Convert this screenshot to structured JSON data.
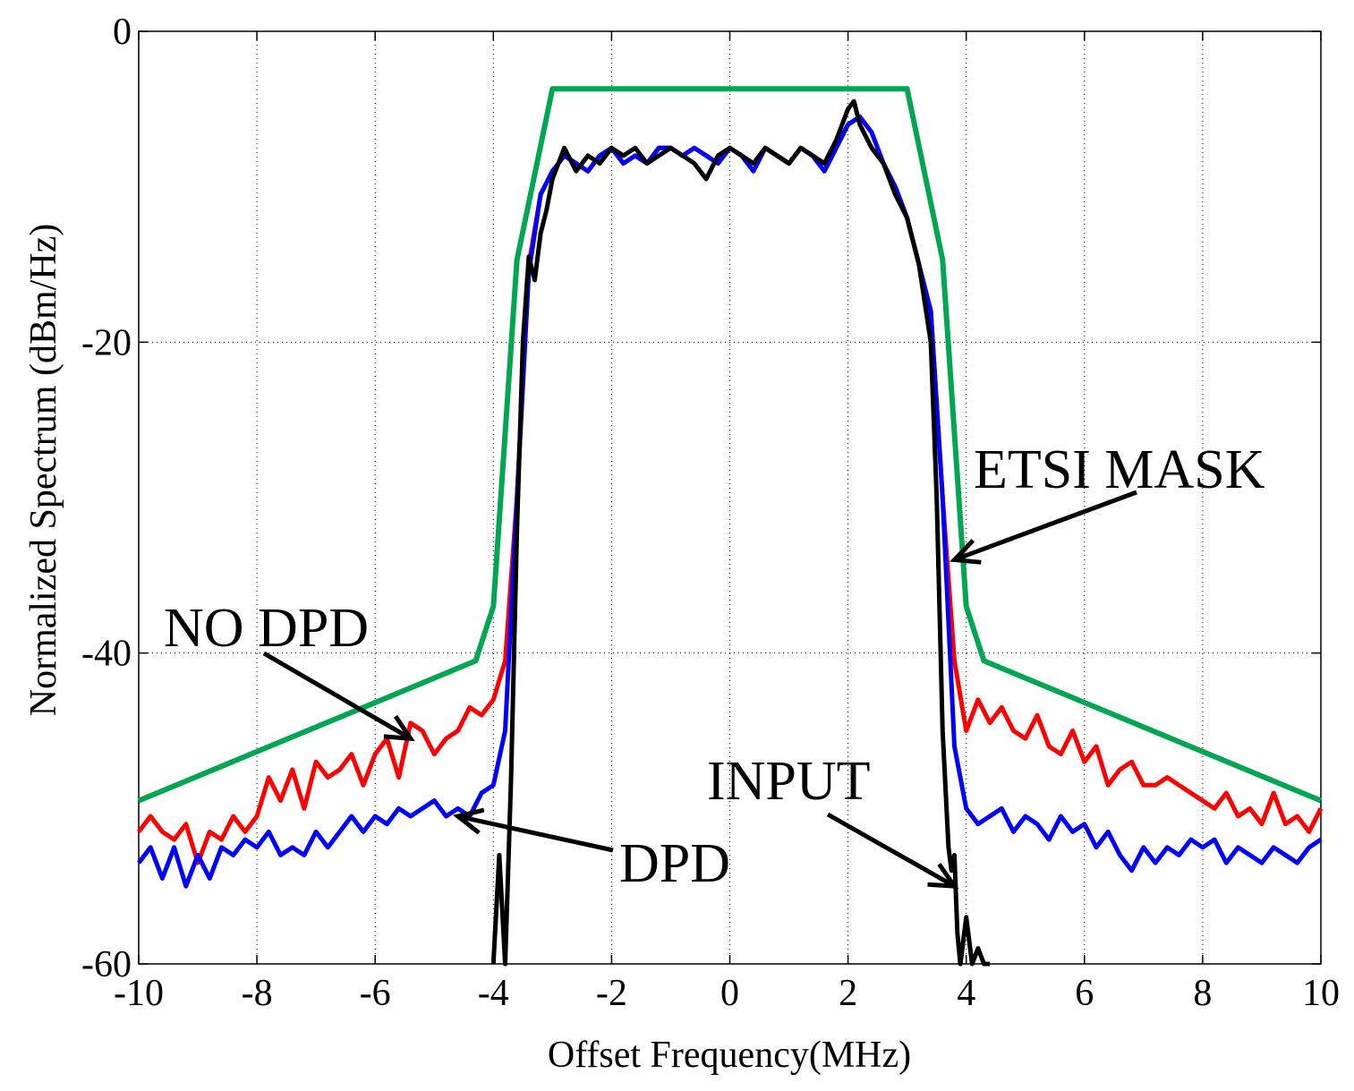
{
  "chart_data": {
    "type": "line",
    "title": "",
    "xlabel": "Offset Frequency(MHz)",
    "ylabel": "Normalized Spectrum (dBm/Hz)",
    "xlim": [
      -10,
      10
    ],
    "ylim": [
      -60,
      0
    ],
    "xticks": [
      -10,
      -8,
      -6,
      -4,
      -2,
      0,
      2,
      4,
      6,
      8,
      10
    ],
    "yticks": [
      0,
      -20,
      -40,
      -60
    ],
    "xtick_labels": [
      "-10",
      "-8",
      "-6",
      "-4",
      "-2",
      "0",
      "2",
      "4",
      "6",
      "8",
      "10"
    ],
    "ytick_labels": [
      "0",
      "-20",
      "-40",
      "-60"
    ],
    "grid": true,
    "colors": {
      "no_dpd": "#ff0000",
      "dpd": "#0000ff",
      "input": "#000000",
      "mask": "#00a651"
    },
    "series": [
      {
        "name": "ETSI MASK",
        "color": "#00a651",
        "x": [
          -10,
          -4.3,
          -4.0,
          -3.6,
          -3.0,
          3.0,
          3.6,
          4.0,
          4.3,
          10
        ],
        "y": [
          -49.5,
          -40.5,
          -37,
          -14.7,
          -3.7,
          -3.7,
          -14.7,
          -37,
          -40.5,
          -49.5
        ]
      },
      {
        "name": "NO DPD",
        "color": "#ff0000",
        "x": [
          -10,
          -9.8,
          -9.6,
          -9.4,
          -9.2,
          -9.0,
          -8.8,
          -8.6,
          -8.4,
          -8.2,
          -8.0,
          -7.8,
          -7.6,
          -7.4,
          -7.2,
          -7.0,
          -6.8,
          -6.6,
          -6.4,
          -6.2,
          -6.0,
          -5.8,
          -5.6,
          -5.4,
          -5.2,
          -5.0,
          -4.8,
          -4.6,
          -4.4,
          -4.2,
          -4.0,
          -3.8,
          -3.6,
          -3.4,
          -3.2,
          -3.0,
          -2.8,
          -2.6,
          -2.4,
          -2.2,
          -2.0,
          -1.8,
          -1.6,
          -1.4,
          -1.2,
          -1.0,
          -0.8,
          -0.6,
          -0.4,
          -0.2,
          0.0,
          0.2,
          0.4,
          0.6,
          0.8,
          1.0,
          1.2,
          1.4,
          1.6,
          1.8,
          2.0,
          2.2,
          2.4,
          2.6,
          2.8,
          3.0,
          3.2,
          3.4,
          3.6,
          3.8,
          4.0,
          4.2,
          4.4,
          4.6,
          4.8,
          5.0,
          5.2,
          5.4,
          5.6,
          5.8,
          6.0,
          6.2,
          6.4,
          6.6,
          6.8,
          7.0,
          7.2,
          7.4,
          7.6,
          7.8,
          8.0,
          8.2,
          8.4,
          8.6,
          8.8,
          9.0,
          9.2,
          9.4,
          9.6,
          9.8,
          10.0
        ],
        "y": [
          -51.5,
          -50.5,
          -51.5,
          -52,
          -51,
          -53.5,
          -51.5,
          -52,
          -50.5,
          -51.5,
          -50.5,
          -48,
          -49.5,
          -47.5,
          -50,
          -47,
          -48,
          -47.5,
          -46.5,
          -48.5,
          -46.5,
          -45.5,
          -48,
          -44.5,
          -45,
          -46.5,
          -45.5,
          -45,
          -43.5,
          -44,
          -43,
          -40.5,
          -30,
          -15,
          -10.5,
          -9.0,
          -8.0,
          -8.5,
          -9.0,
          -8.0,
          -7.5,
          -8.5,
          -8.0,
          -8.5,
          -7.5,
          -7.5,
          -8.0,
          -7.5,
          -8.0,
          -8.5,
          -7.5,
          -8.0,
          -9.0,
          -7.5,
          -8.0,
          -8.5,
          -7.5,
          -8.0,
          -9.0,
          -7.5,
          -6.0,
          -5.5,
          -6.5,
          -8.5,
          -10,
          -12,
          -15,
          -18,
          -30,
          -40.5,
          -45,
          -43,
          -44.5,
          -43.5,
          -45,
          -45.5,
          -44,
          -46,
          -46.5,
          -45,
          -47,
          -46,
          -48.5,
          -47.5,
          -47,
          -48.5,
          -48.5,
          -48,
          -48.5,
          -49,
          -49.5,
          -50,
          -49,
          -50.5,
          -50,
          -51,
          -49,
          -51,
          -50.5,
          -51.5,
          -50
        ]
      },
      {
        "name": "DPD",
        "color": "#0000ff",
        "x": [
          -10,
          -9.8,
          -9.6,
          -9.4,
          -9.2,
          -9.0,
          -8.8,
          -8.6,
          -8.4,
          -8.2,
          -8.0,
          -7.8,
          -7.6,
          -7.4,
          -7.2,
          -7.0,
          -6.8,
          -6.6,
          -6.4,
          -6.2,
          -6.0,
          -5.8,
          -5.6,
          -5.4,
          -5.2,
          -5.0,
          -4.8,
          -4.6,
          -4.4,
          -4.2,
          -4.0,
          -3.8,
          -3.6,
          -3.4,
          -3.2,
          -3.0,
          -2.8,
          -2.6,
          -2.4,
          -2.2,
          -2.0,
          -1.8,
          -1.6,
          -1.4,
          -1.2,
          -1.0,
          -0.8,
          -0.6,
          -0.4,
          -0.2,
          0.0,
          0.2,
          0.4,
          0.6,
          0.8,
          1.0,
          1.2,
          1.4,
          1.6,
          1.8,
          2.0,
          2.2,
          2.4,
          2.6,
          2.8,
          3.0,
          3.2,
          3.4,
          3.6,
          3.8,
          4.0,
          4.2,
          4.4,
          4.6,
          4.8,
          5.0,
          5.2,
          5.4,
          5.6,
          5.8,
          6.0,
          6.2,
          6.4,
          6.6,
          6.8,
          7.0,
          7.2,
          7.4,
          7.6,
          7.8,
          8.0,
          8.2,
          8.4,
          8.6,
          8.8,
          9.0,
          9.2,
          9.4,
          9.6,
          9.8,
          10.0
        ],
        "y": [
          -53.5,
          -52.5,
          -54.5,
          -52.5,
          -55,
          -53,
          -54.5,
          -52.5,
          -53,
          -52,
          -52.5,
          -51.5,
          -53,
          -52.5,
          -53,
          -51.5,
          -52.5,
          -51.5,
          -50.5,
          -51.5,
          -50.5,
          -51,
          -50,
          -50.5,
          -50,
          -49.5,
          -50.5,
          -50,
          -50.5,
          -49,
          -48.5,
          -45,
          -30,
          -15.5,
          -10.5,
          -9.0,
          -8.0,
          -8.5,
          -9.0,
          -8.0,
          -7.5,
          -8.5,
          -8.0,
          -8.5,
          -7.5,
          -7.5,
          -8.0,
          -7.5,
          -8.0,
          -8.5,
          -7.5,
          -8.0,
          -9.0,
          -7.5,
          -8.0,
          -8.5,
          -7.5,
          -8.0,
          -9.0,
          -7.5,
          -6.0,
          -5.5,
          -6.5,
          -8.5,
          -10,
          -12,
          -15,
          -18,
          -30,
          -46,
          -50,
          -51,
          -50.5,
          -50,
          -51.5,
          -50.5,
          -51,
          -52,
          -50.5,
          -51.5,
          -51,
          -52.5,
          -51.5,
          -53,
          -54,
          -52.5,
          -53.5,
          -52.5,
          -53,
          -52,
          -52.5,
          -52,
          -53.5,
          -52.5,
          -53,
          -53.5,
          -52.5,
          -53,
          -53.5,
          -52.5,
          -52
        ]
      },
      {
        "name": "INPUT",
        "color": "#000000",
        "x": [
          -4.0,
          -3.9,
          -3.8,
          -3.7,
          -3.6,
          -3.5,
          -3.4,
          -3.3,
          -3.2,
          -3.1,
          -3.0,
          -2.8,
          -2.6,
          -2.4,
          -2.2,
          -2.0,
          -1.8,
          -1.6,
          -1.4,
          -1.2,
          -1.0,
          -0.8,
          -0.6,
          -0.4,
          -0.2,
          0.0,
          0.2,
          0.4,
          0.6,
          0.8,
          1.0,
          1.2,
          1.4,
          1.6,
          1.8,
          2.0,
          2.1,
          2.2,
          2.4,
          2.6,
          2.8,
          3.0,
          3.2,
          3.4,
          3.5,
          3.6,
          3.7,
          3.75,
          3.8,
          3.85,
          3.9,
          4.0,
          4.1,
          4.2,
          4.3,
          4.4
        ],
        "y": [
          -60,
          -53,
          -60,
          -48,
          -32,
          -20,
          -14.5,
          -16,
          -13,
          -11.5,
          -9.5,
          -7.5,
          -9.0,
          -8.0,
          -8.5,
          -7.5,
          -8.0,
          -7.5,
          -8.5,
          -8.0,
          -7.5,
          -8.0,
          -8.5,
          -9.5,
          -8.0,
          -7.5,
          -8.0,
          -8.5,
          -7.5,
          -8.0,
          -8.5,
          -7.5,
          -8.0,
          -8.5,
          -7.0,
          -5.0,
          -4.5,
          -6.0,
          -7.5,
          -8.5,
          -10.5,
          -12,
          -15,
          -20,
          -30,
          -45,
          -52.5,
          -54,
          -53,
          -58,
          -60,
          -57,
          -60,
          -59,
          -60,
          -60
        ]
      }
    ],
    "annotations": [
      {
        "text": "ETSI MASK",
        "arrow_to": [
          3.8,
          -34
        ]
      },
      {
        "text": "NO DPD",
        "arrow_to": [
          -5.4,
          -45.5
        ]
      },
      {
        "text": "DPD",
        "arrow_to": [
          -4.6,
          -50.5
        ]
      },
      {
        "text": "INPUT",
        "arrow_to": [
          3.8,
          -55
        ]
      }
    ]
  }
}
